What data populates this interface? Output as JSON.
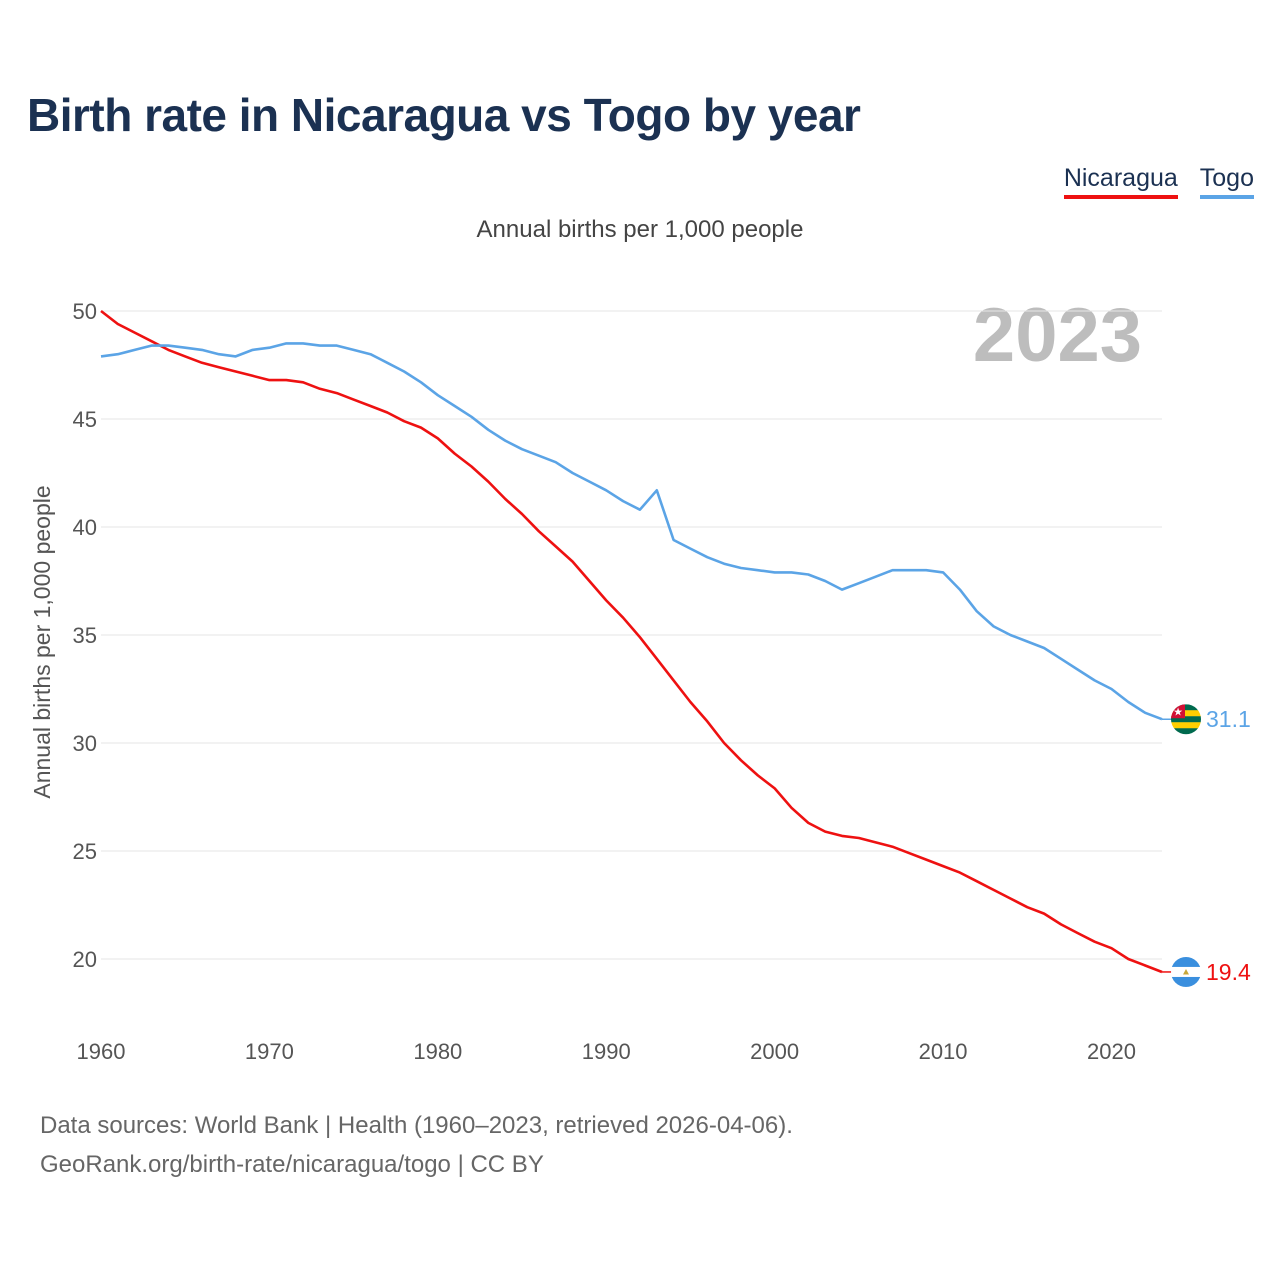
{
  "title": "Birth rate in Nicaragua vs Togo by year",
  "subtitle": "Annual births per 1,000 people",
  "year_watermark": "2023",
  "source_line1": "Data sources: World Bank | Health (1960–2023, retrieved 2026-04-06).",
  "source_line2": "GeoRank.org/birth-rate/nicaragua/togo | CC BY",
  "chart_data": {
    "type": "line",
    "title": "Birth rate in Nicaragua vs Togo by year",
    "xlabel": "",
    "ylabel": "Annual births per 1,000 people",
    "xlim": [
      1960,
      2023
    ],
    "ylim": [
      20,
      50
    ],
    "x_ticks": [
      1960,
      1970,
      1980,
      1990,
      2000,
      2010,
      2020
    ],
    "y_ticks": [
      20,
      25,
      30,
      35,
      40,
      45,
      50
    ],
    "grid": true,
    "legend": "top-right",
    "x": [
      1960,
      1961,
      1962,
      1963,
      1964,
      1965,
      1966,
      1967,
      1968,
      1969,
      1970,
      1971,
      1972,
      1973,
      1974,
      1975,
      1976,
      1977,
      1978,
      1979,
      1980,
      1981,
      1982,
      1983,
      1984,
      1985,
      1986,
      1987,
      1988,
      1989,
      1990,
      1991,
      1992,
      1993,
      1994,
      1995,
      1996,
      1997,
      1998,
      1999,
      2000,
      2001,
      2002,
      2003,
      2004,
      2005,
      2006,
      2007,
      2008,
      2009,
      2010,
      2011,
      2012,
      2013,
      2014,
      2015,
      2016,
      2017,
      2018,
      2019,
      2020,
      2021,
      2022,
      2023
    ],
    "series": [
      {
        "name": "Nicaragua",
        "color": "#ee1111",
        "end_label": "19.4",
        "values": [
          50.0,
          49.4,
          49.0,
          48.6,
          48.2,
          47.9,
          47.6,
          47.4,
          47.2,
          47.0,
          46.8,
          46.8,
          46.7,
          46.4,
          46.2,
          45.9,
          45.6,
          45.3,
          44.9,
          44.6,
          44.1,
          43.4,
          42.8,
          42.1,
          41.3,
          40.6,
          39.8,
          39.1,
          38.4,
          37.5,
          36.6,
          35.8,
          34.9,
          33.9,
          32.9,
          31.9,
          31.0,
          30.0,
          29.2,
          28.5,
          27.9,
          27.0,
          26.3,
          25.9,
          25.7,
          25.6,
          25.4,
          25.2,
          24.9,
          24.6,
          24.3,
          24.0,
          23.6,
          23.2,
          22.8,
          22.4,
          22.1,
          21.6,
          21.2,
          20.8,
          20.5,
          20.0,
          19.7,
          19.4
        ]
      },
      {
        "name": "Togo",
        "color": "#5ba4e6",
        "end_label": "31.1",
        "values": [
          47.9,
          48.0,
          48.2,
          48.4,
          48.4,
          48.3,
          48.2,
          48.0,
          47.9,
          48.2,
          48.3,
          48.5,
          48.5,
          48.4,
          48.4,
          48.2,
          48.0,
          47.6,
          47.2,
          46.7,
          46.1,
          45.6,
          45.1,
          44.5,
          44.0,
          43.6,
          43.3,
          43.0,
          42.5,
          42.1,
          41.7,
          41.2,
          40.8,
          41.7,
          39.4,
          39.0,
          38.6,
          38.3,
          38.1,
          38.0,
          37.9,
          37.9,
          37.8,
          37.5,
          37.1,
          37.4,
          37.7,
          38.0,
          38.0,
          38.0,
          37.9,
          37.1,
          36.1,
          35.4,
          35.0,
          34.7,
          34.4,
          33.9,
          33.4,
          32.9,
          32.5,
          31.9,
          31.4,
          31.1
        ]
      }
    ]
  }
}
